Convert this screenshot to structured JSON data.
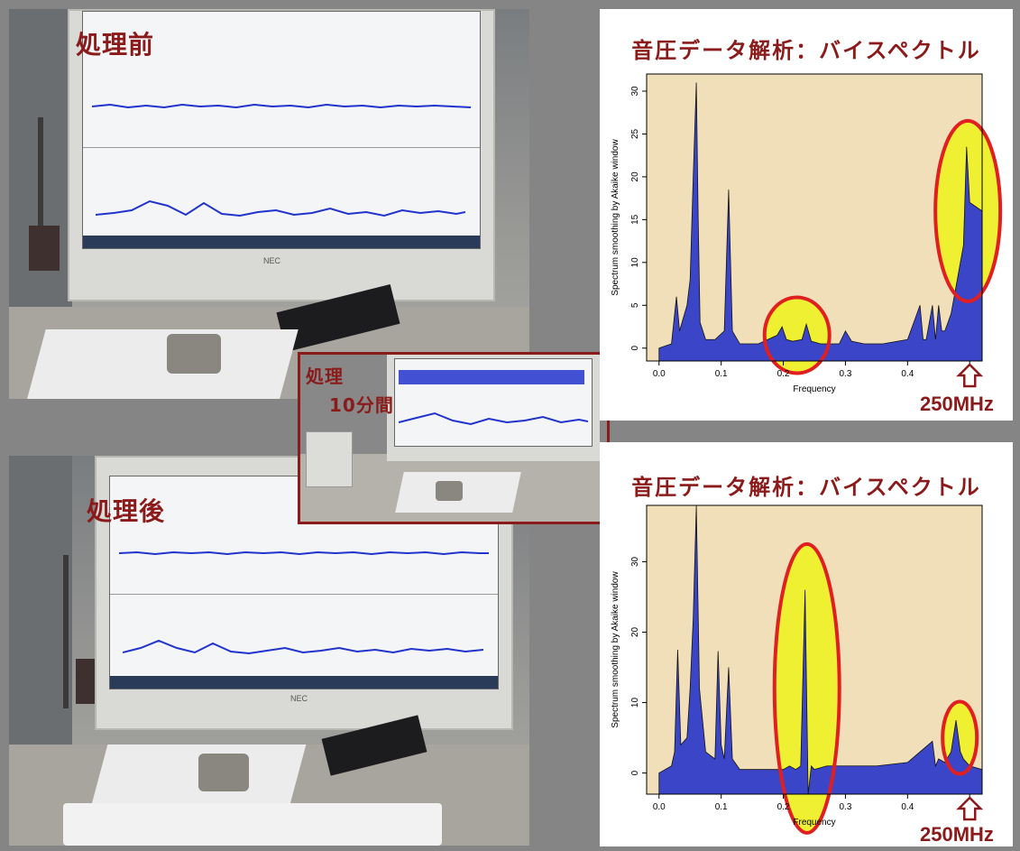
{
  "photos": {
    "before_label": "処理前",
    "after_label": "処理後",
    "inset_label_line1": "処理",
    "inset_label_line2": "10分間",
    "monitor_brand": "NEC"
  },
  "colors": {
    "accent_red": "#8b1a1a",
    "highlight_yellow": "#f0f032",
    "ellipse_red": "#e02020",
    "spectrum_fill": "#3a45c8",
    "chart_bg": "#f0dfb8"
  },
  "chart_data": [
    {
      "type": "area",
      "title": "音圧データ解析：バイスペクトル",
      "xlabel": "Frequency",
      "ylabel": "Spectrum smoothing by Akaike window",
      "xlim": [
        -0.02,
        0.52
      ],
      "ylim": [
        -1.5,
        32
      ],
      "x_ticks": [
        "0.0",
        "0.1",
        "0.2",
        "0.3",
        "0.4",
        "0.5"
      ],
      "y_ticks": [
        "0",
        "5",
        "10",
        "15",
        "20",
        "25",
        "30"
      ],
      "annotation": "250MHz",
      "series": [
        {
          "x": [
            0.0,
            0.02,
            0.028,
            0.033,
            0.037,
            0.045,
            0.05,
            0.055,
            0.06,
            0.063,
            0.066,
            0.075,
            0.09,
            0.105,
            0.112,
            0.118,
            0.13,
            0.16,
            0.19,
            0.198,
            0.205,
            0.215,
            0.23,
            0.237,
            0.245,
            0.26,
            0.29,
            0.3,
            0.31,
            0.33,
            0.36,
            0.4,
            0.42,
            0.425,
            0.43,
            0.44,
            0.445,
            0.45,
            0.455,
            0.46,
            0.47,
            0.48,
            0.49,
            0.495,
            0.5,
            0.51,
            0.52
          ],
          "values": [
            0,
            0.5,
            6,
            2,
            3,
            5,
            8,
            20,
            31,
            15,
            3,
            1,
            1,
            2,
            18.5,
            2,
            0.5,
            0.5,
            1.5,
            2.5,
            1,
            0.8,
            1,
            2.8,
            0.8,
            0.5,
            0.5,
            2,
            0.8,
            0.5,
            0.5,
            1,
            5,
            1,
            1,
            5,
            1,
            5,
            2,
            2,
            4,
            8,
            12,
            23.5,
            17,
            16.5,
            16
          ]
        }
      ],
      "highlights": [
        "0.2-0.25 band",
        "0.5 band"
      ]
    },
    {
      "type": "area",
      "title": "音圧データ解析：バイスペクトル",
      "xlabel": "Frequency",
      "ylabel": "Spectrum smoothing by Akaike window",
      "xlim": [
        -0.02,
        0.52
      ],
      "ylim": [
        -3,
        38
      ],
      "x_ticks": [
        "0.0",
        "0.1",
        "0.2",
        "0.3",
        "0.4",
        "0.5"
      ],
      "y_ticks": [
        "0",
        "10",
        "20",
        "30"
      ],
      "annotation": "250MHz",
      "series": [
        {
          "x": [
            0.0,
            0.02,
            0.025,
            0.03,
            0.035,
            0.045,
            0.05,
            0.055,
            0.06,
            0.065,
            0.075,
            0.09,
            0.095,
            0.1,
            0.105,
            0.112,
            0.118,
            0.13,
            0.17,
            0.2,
            0.21,
            0.22,
            0.228,
            0.235,
            0.24,
            0.245,
            0.25,
            0.27,
            0.3,
            0.35,
            0.4,
            0.44,
            0.445,
            0.45,
            0.46,
            0.47,
            0.478,
            0.485,
            0.49,
            0.5,
            0.52
          ],
          "values": [
            0,
            1,
            3,
            17.5,
            4,
            5,
            12,
            22,
            38,
            12,
            3,
            2,
            17.3,
            4,
            2,
            15,
            2,
            0.5,
            0.5,
            0.5,
            1,
            0.5,
            1,
            26,
            -3,
            1,
            0.5,
            1,
            1,
            1,
            1.5,
            4.5,
            1,
            2,
            1.5,
            3,
            7.5,
            3,
            2,
            1,
            0.5
          ]
        }
      ],
      "highlights": [
        "0.22-0.25 band",
        "0.48 band"
      ]
    }
  ]
}
